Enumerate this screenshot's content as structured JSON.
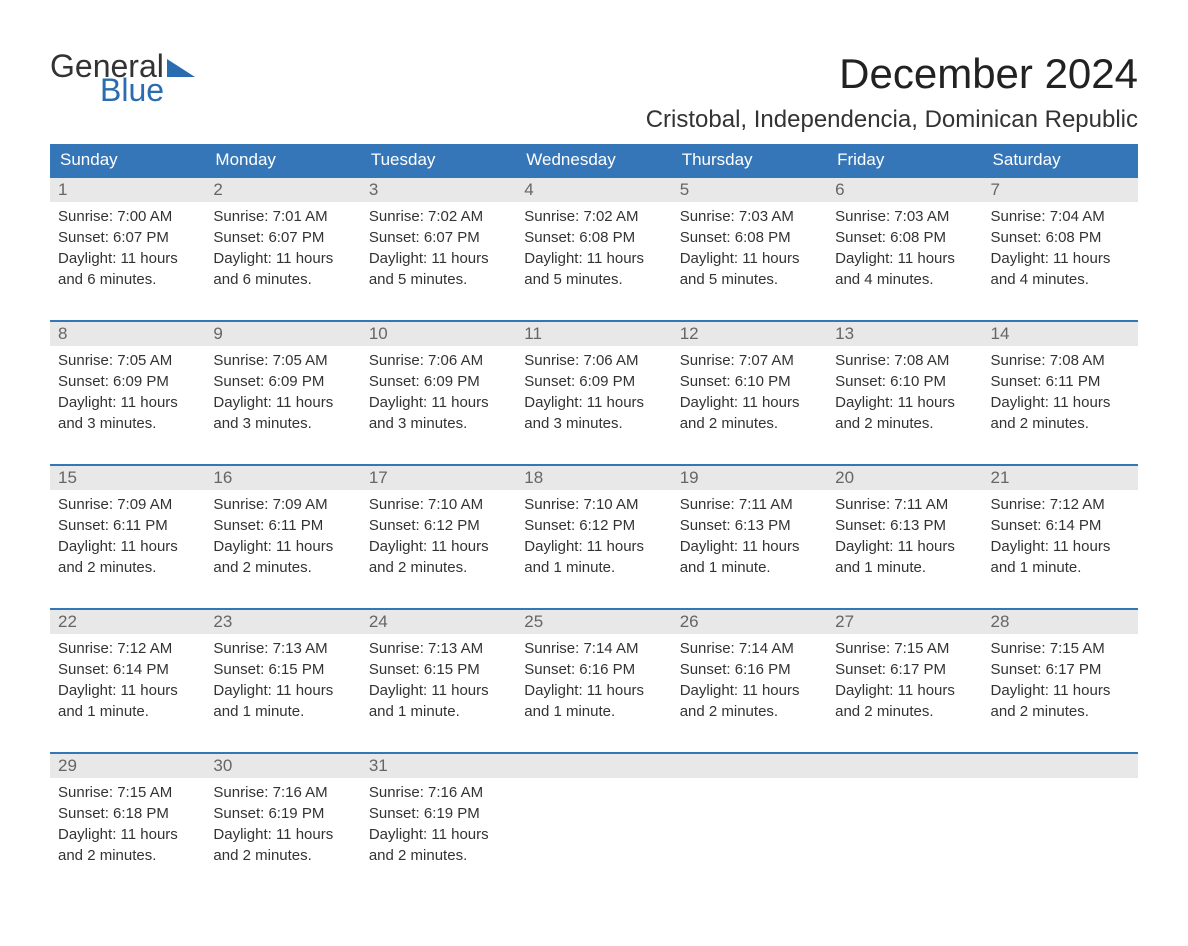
{
  "logo": {
    "text_general": "General",
    "text_blue": "Blue"
  },
  "title": "December 2024",
  "location": "Cristobal, Independencia, Dominican Republic",
  "colors": {
    "header_bg": "#3576b8",
    "header_text": "#ffffff",
    "day_number_bg": "#e8e8e8",
    "day_number_text": "#666666",
    "text_color": "#333333",
    "border_color": "#3576b8",
    "logo_blue": "#2a6cb0"
  },
  "day_headers": [
    "Sunday",
    "Monday",
    "Tuesday",
    "Wednesday",
    "Thursday",
    "Friday",
    "Saturday"
  ],
  "weeks": [
    [
      {
        "day": "1",
        "sunrise": "Sunrise: 7:00 AM",
        "sunset": "Sunset: 6:07 PM",
        "daylight1": "Daylight: 11 hours",
        "daylight2": "and 6 minutes."
      },
      {
        "day": "2",
        "sunrise": "Sunrise: 7:01 AM",
        "sunset": "Sunset: 6:07 PM",
        "daylight1": "Daylight: 11 hours",
        "daylight2": "and 6 minutes."
      },
      {
        "day": "3",
        "sunrise": "Sunrise: 7:02 AM",
        "sunset": "Sunset: 6:07 PM",
        "daylight1": "Daylight: 11 hours",
        "daylight2": "and 5 minutes."
      },
      {
        "day": "4",
        "sunrise": "Sunrise: 7:02 AM",
        "sunset": "Sunset: 6:08 PM",
        "daylight1": "Daylight: 11 hours",
        "daylight2": "and 5 minutes."
      },
      {
        "day": "5",
        "sunrise": "Sunrise: 7:03 AM",
        "sunset": "Sunset: 6:08 PM",
        "daylight1": "Daylight: 11 hours",
        "daylight2": "and 5 minutes."
      },
      {
        "day": "6",
        "sunrise": "Sunrise: 7:03 AM",
        "sunset": "Sunset: 6:08 PM",
        "daylight1": "Daylight: 11 hours",
        "daylight2": "and 4 minutes."
      },
      {
        "day": "7",
        "sunrise": "Sunrise: 7:04 AM",
        "sunset": "Sunset: 6:08 PM",
        "daylight1": "Daylight: 11 hours",
        "daylight2": "and 4 minutes."
      }
    ],
    [
      {
        "day": "8",
        "sunrise": "Sunrise: 7:05 AM",
        "sunset": "Sunset: 6:09 PM",
        "daylight1": "Daylight: 11 hours",
        "daylight2": "and 3 minutes."
      },
      {
        "day": "9",
        "sunrise": "Sunrise: 7:05 AM",
        "sunset": "Sunset: 6:09 PM",
        "daylight1": "Daylight: 11 hours",
        "daylight2": "and 3 minutes."
      },
      {
        "day": "10",
        "sunrise": "Sunrise: 7:06 AM",
        "sunset": "Sunset: 6:09 PM",
        "daylight1": "Daylight: 11 hours",
        "daylight2": "and 3 minutes."
      },
      {
        "day": "11",
        "sunrise": "Sunrise: 7:06 AM",
        "sunset": "Sunset: 6:09 PM",
        "daylight1": "Daylight: 11 hours",
        "daylight2": "and 3 minutes."
      },
      {
        "day": "12",
        "sunrise": "Sunrise: 7:07 AM",
        "sunset": "Sunset: 6:10 PM",
        "daylight1": "Daylight: 11 hours",
        "daylight2": "and 2 minutes."
      },
      {
        "day": "13",
        "sunrise": "Sunrise: 7:08 AM",
        "sunset": "Sunset: 6:10 PM",
        "daylight1": "Daylight: 11 hours",
        "daylight2": "and 2 minutes."
      },
      {
        "day": "14",
        "sunrise": "Sunrise: 7:08 AM",
        "sunset": "Sunset: 6:11 PM",
        "daylight1": "Daylight: 11 hours",
        "daylight2": "and 2 minutes."
      }
    ],
    [
      {
        "day": "15",
        "sunrise": "Sunrise: 7:09 AM",
        "sunset": "Sunset: 6:11 PM",
        "daylight1": "Daylight: 11 hours",
        "daylight2": "and 2 minutes."
      },
      {
        "day": "16",
        "sunrise": "Sunrise: 7:09 AM",
        "sunset": "Sunset: 6:11 PM",
        "daylight1": "Daylight: 11 hours",
        "daylight2": "and 2 minutes."
      },
      {
        "day": "17",
        "sunrise": "Sunrise: 7:10 AM",
        "sunset": "Sunset: 6:12 PM",
        "daylight1": "Daylight: 11 hours",
        "daylight2": "and 2 minutes."
      },
      {
        "day": "18",
        "sunrise": "Sunrise: 7:10 AM",
        "sunset": "Sunset: 6:12 PM",
        "daylight1": "Daylight: 11 hours",
        "daylight2": "and 1 minute."
      },
      {
        "day": "19",
        "sunrise": "Sunrise: 7:11 AM",
        "sunset": "Sunset: 6:13 PM",
        "daylight1": "Daylight: 11 hours",
        "daylight2": "and 1 minute."
      },
      {
        "day": "20",
        "sunrise": "Sunrise: 7:11 AM",
        "sunset": "Sunset: 6:13 PM",
        "daylight1": "Daylight: 11 hours",
        "daylight2": "and 1 minute."
      },
      {
        "day": "21",
        "sunrise": "Sunrise: 7:12 AM",
        "sunset": "Sunset: 6:14 PM",
        "daylight1": "Daylight: 11 hours",
        "daylight2": "and 1 minute."
      }
    ],
    [
      {
        "day": "22",
        "sunrise": "Sunrise: 7:12 AM",
        "sunset": "Sunset: 6:14 PM",
        "daylight1": "Daylight: 11 hours",
        "daylight2": "and 1 minute."
      },
      {
        "day": "23",
        "sunrise": "Sunrise: 7:13 AM",
        "sunset": "Sunset: 6:15 PM",
        "daylight1": "Daylight: 11 hours",
        "daylight2": "and 1 minute."
      },
      {
        "day": "24",
        "sunrise": "Sunrise: 7:13 AM",
        "sunset": "Sunset: 6:15 PM",
        "daylight1": "Daylight: 11 hours",
        "daylight2": "and 1 minute."
      },
      {
        "day": "25",
        "sunrise": "Sunrise: 7:14 AM",
        "sunset": "Sunset: 6:16 PM",
        "daylight1": "Daylight: 11 hours",
        "daylight2": "and 1 minute."
      },
      {
        "day": "26",
        "sunrise": "Sunrise: 7:14 AM",
        "sunset": "Sunset: 6:16 PM",
        "daylight1": "Daylight: 11 hours",
        "daylight2": "and 2 minutes."
      },
      {
        "day": "27",
        "sunrise": "Sunrise: 7:15 AM",
        "sunset": "Sunset: 6:17 PM",
        "daylight1": "Daylight: 11 hours",
        "daylight2": "and 2 minutes."
      },
      {
        "day": "28",
        "sunrise": "Sunrise: 7:15 AM",
        "sunset": "Sunset: 6:17 PM",
        "daylight1": "Daylight: 11 hours",
        "daylight2": "and 2 minutes."
      }
    ],
    [
      {
        "day": "29",
        "sunrise": "Sunrise: 7:15 AM",
        "sunset": "Sunset: 6:18 PM",
        "daylight1": "Daylight: 11 hours",
        "daylight2": "and 2 minutes."
      },
      {
        "day": "30",
        "sunrise": "Sunrise: 7:16 AM",
        "sunset": "Sunset: 6:19 PM",
        "daylight1": "Daylight: 11 hours",
        "daylight2": "and 2 minutes."
      },
      {
        "day": "31",
        "sunrise": "Sunrise: 7:16 AM",
        "sunset": "Sunset: 6:19 PM",
        "daylight1": "Daylight: 11 hours",
        "daylight2": "and 2 minutes."
      },
      null,
      null,
      null,
      null
    ]
  ]
}
